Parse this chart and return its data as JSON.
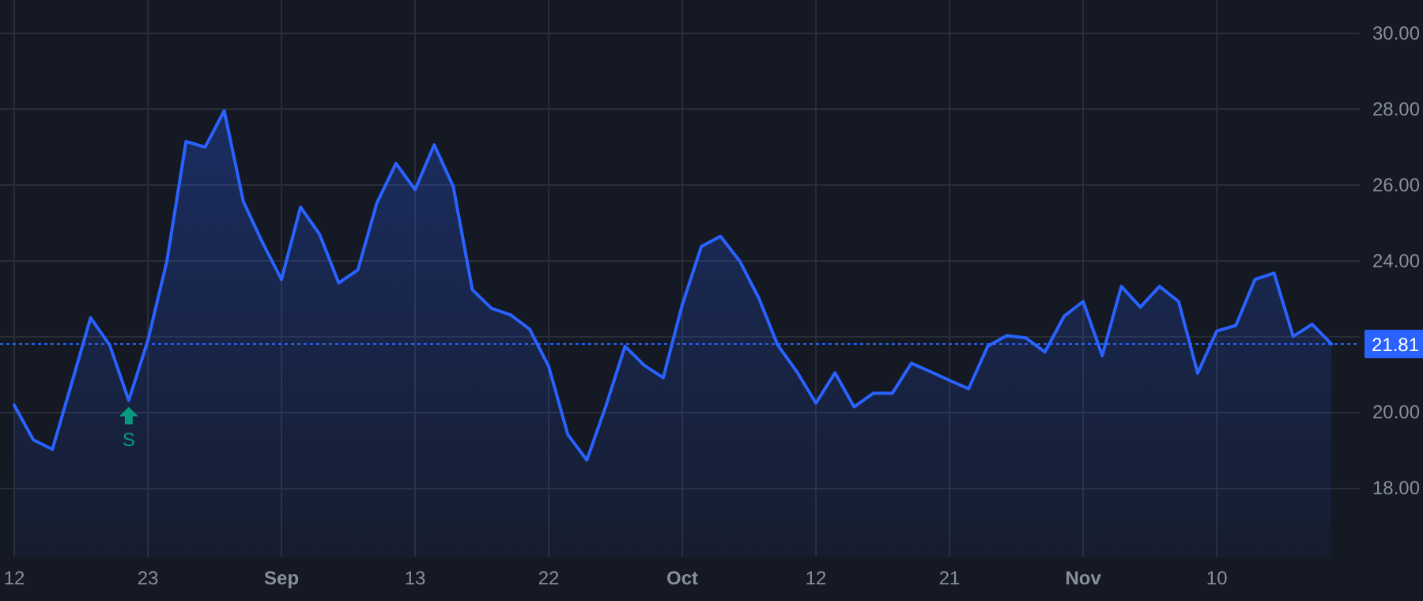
{
  "chart_data": {
    "type": "area",
    "categories": [
      "12",
      null,
      null,
      null,
      null,
      null,
      null,
      "23",
      null,
      null,
      null,
      null,
      null,
      null,
      "Sep",
      null,
      null,
      null,
      null,
      null,
      null,
      "13",
      null,
      null,
      null,
      null,
      null,
      null,
      "22",
      null,
      null,
      null,
      null,
      null,
      null,
      "Oct",
      null,
      null,
      null,
      null,
      null,
      null,
      "12",
      null,
      null,
      null,
      null,
      null,
      null,
      "21",
      null,
      null,
      null,
      null,
      null,
      null,
      "Nov",
      null,
      null,
      null,
      null,
      null,
      null,
      "10",
      null,
      null,
      null,
      null,
      null,
      null
    ],
    "series": [
      {
        "color": "#2962ff",
        "values": [
          20.2,
          19.28,
          19.03,
          20.76,
          22.5,
          21.78,
          20.32,
          21.9,
          24.0,
          27.15,
          27.0,
          27.96,
          25.57,
          24.49,
          23.51,
          25.42,
          24.7,
          23.42,
          23.76,
          25.53,
          26.57,
          25.88,
          27.06,
          25.96,
          23.24,
          22.75,
          22.58,
          22.2,
          21.22,
          19.42,
          18.75,
          20.18,
          21.75,
          21.25,
          20.92,
          22.85,
          24.38,
          24.65,
          24.0,
          23.03,
          21.78,
          21.08,
          20.25,
          21.05,
          20.15,
          20.51,
          20.51,
          21.3,
          21.08,
          20.85,
          20.63,
          21.75,
          22.03,
          21.97,
          21.6,
          22.54,
          22.93,
          21.5,
          23.33,
          22.78,
          23.33,
          22.93,
          21.04,
          22.15,
          22.3,
          23.51,
          23.68,
          22.01,
          22.33,
          21.81
        ]
      }
    ],
    "ylim": [
      16.2,
      30.88
    ],
    "yticks": [
      {
        "value": 18,
        "label": "18.00"
      },
      {
        "value": 20,
        "label": "20.00"
      },
      {
        "value": 22,
        "label": null
      },
      {
        "value": 24,
        "label": "24.00"
      },
      {
        "value": 26,
        "label": "26.00"
      },
      {
        "value": 28,
        "label": "28.00"
      },
      {
        "value": 30,
        "label": "30.00"
      }
    ],
    "grid": true,
    "ref_lines": [
      {
        "axis": "y",
        "value": 21.81,
        "label": "21.81",
        "color": "#2962ff",
        "line_style": "dotted"
      }
    ],
    "annotations": [
      {
        "text": "S",
        "y": 20.32
      }
    ]
  }
}
